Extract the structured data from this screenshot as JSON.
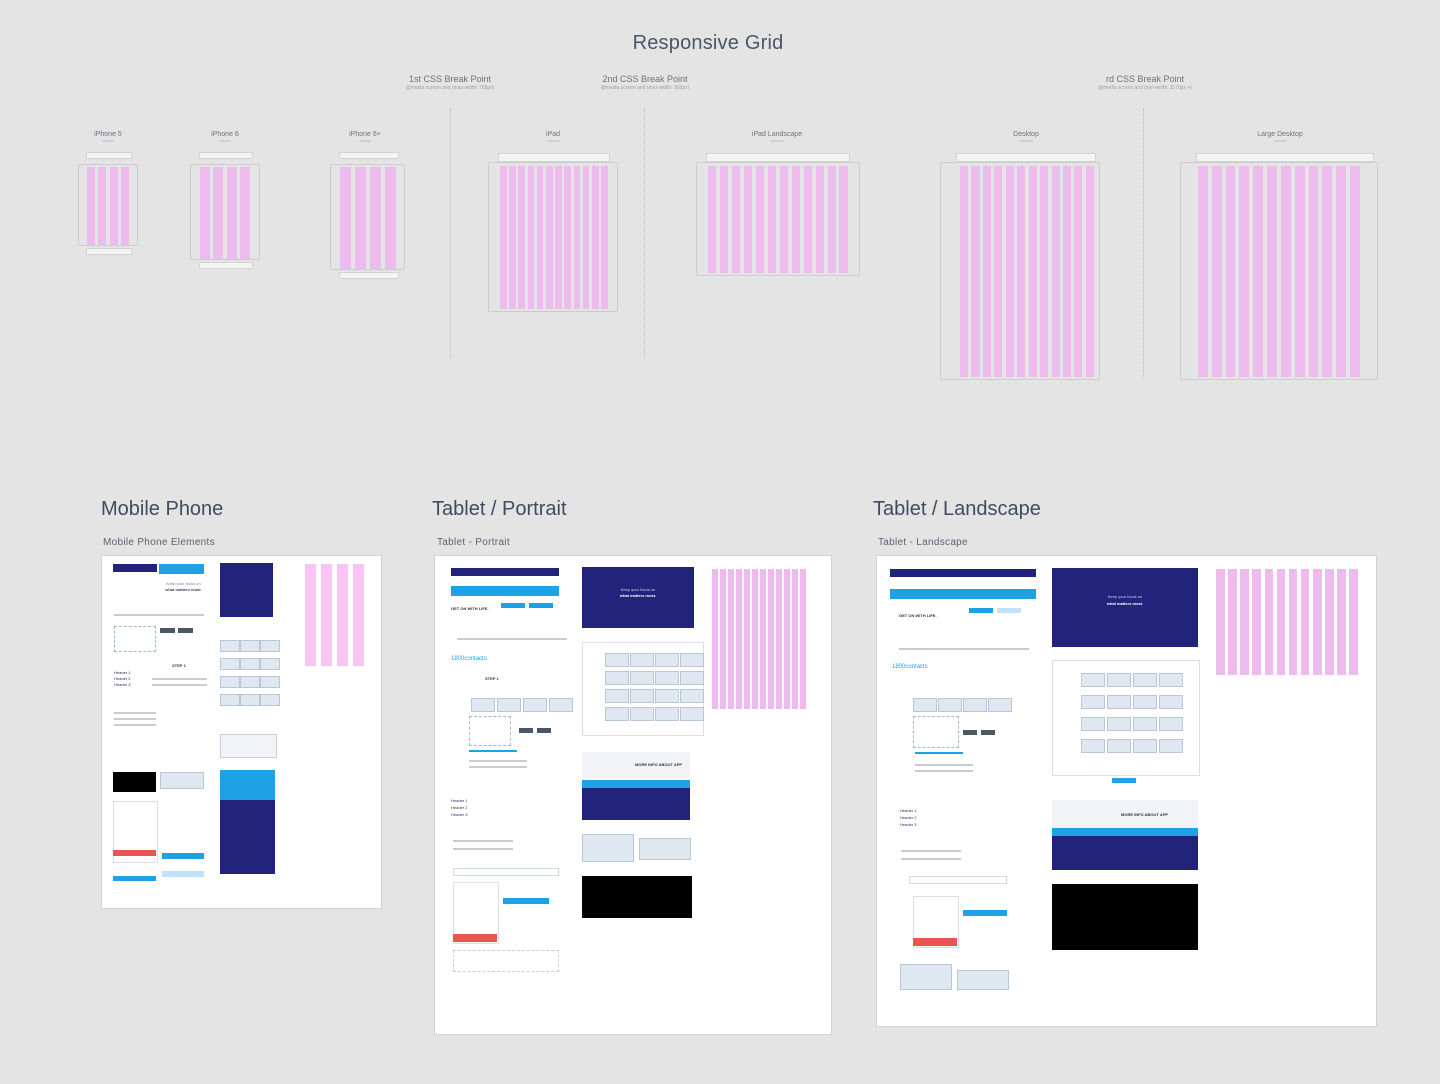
{
  "page_title": "Responsive Grid",
  "breakpoints": [
    {
      "label": "1st CSS Break Point",
      "sub": "@media screen and (max-width: 768px)"
    },
    {
      "label": "2nd CSS Break Point",
      "sub": "@media screen and (max-width: 992px)"
    },
    {
      "label": "rd CSS Break Point",
      "sub": "@media screen and (min-width: 1170px +)"
    }
  ],
  "devices": [
    {
      "label": "iPhone 5",
      "sub": "320x568"
    },
    {
      "label": "iPhone 6",
      "sub": "375x667"
    },
    {
      "label": "iPhone 6+",
      "sub": "414x736"
    },
    {
      "label": "iPad",
      "sub": "768x1024"
    },
    {
      "label": "iPad Landscape",
      "sub": "1024x768"
    },
    {
      "label": "Desktop",
      "sub": "1280x800"
    },
    {
      "label": "Large Desktop",
      "sub": "1440x900"
    }
  ],
  "sections": [
    {
      "title": "Mobile Phone",
      "board_label": "Mobile Phone Elements"
    },
    {
      "title": "Tablet / Portrait",
      "board_label": "Tablet - Portrait"
    },
    {
      "title": "Tablet / Landscape",
      "board_label": "Tablet - Landscape"
    }
  ],
  "mockup_text": {
    "hero_line1": "Keep your focus on",
    "hero_line2": "what matters most.",
    "get_on": "GET ON WITH LIFE.",
    "brand": "1800contacts",
    "step": "STEP 1",
    "more_info": "MORE INFO ABOUT APP",
    "header1": "Header 1",
    "header2": "Header 2",
    "header3": "Header 3"
  },
  "colors": {
    "grid_column": "#eebbee",
    "navy": "#22237b",
    "accent_blue": "#1da2e6",
    "red": "#e8564f"
  }
}
